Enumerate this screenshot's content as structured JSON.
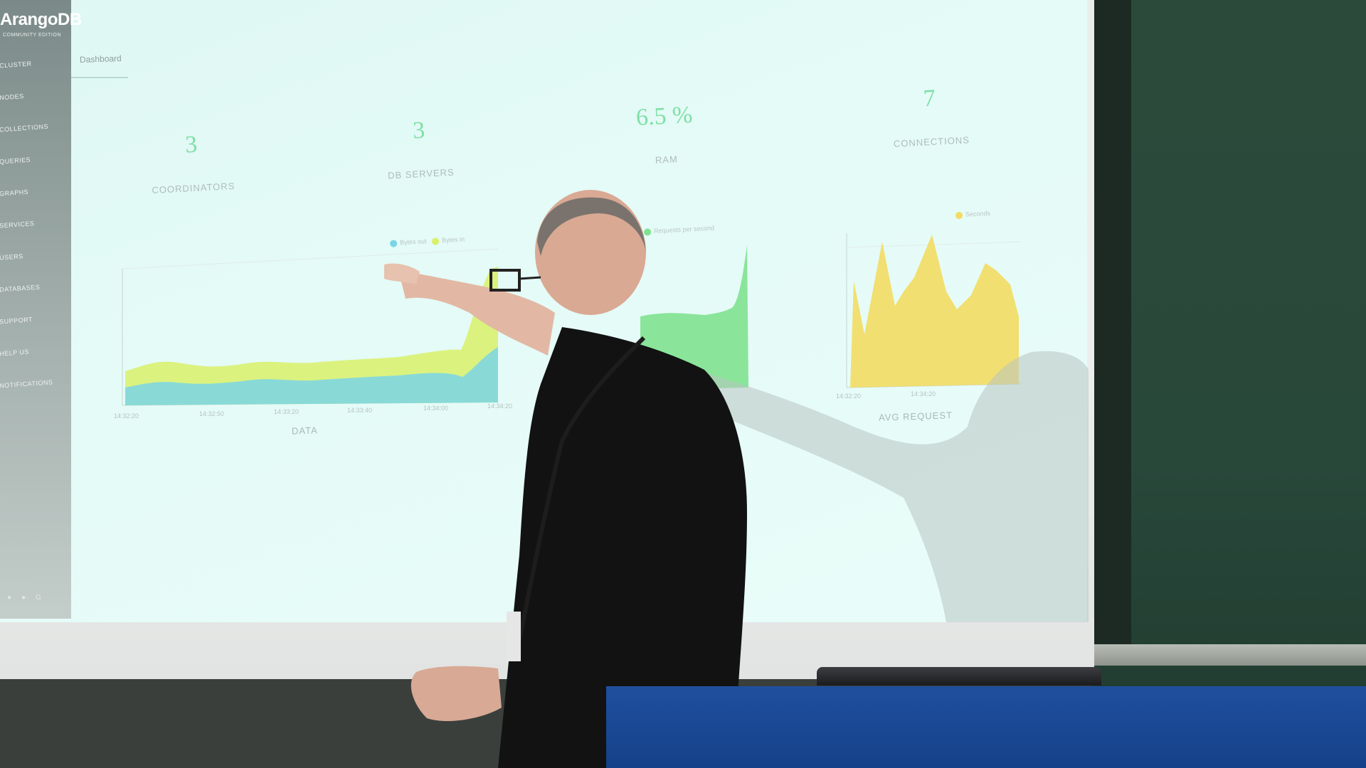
{
  "app": {
    "brand": "ArangoDB",
    "edition": "COMMUNITY EDITION",
    "tab": "Dashboard"
  },
  "sidebar": {
    "items": [
      "CLUSTER",
      "NODES",
      "COLLECTIONS",
      "QUERIES",
      "GRAPHS",
      "SERVICES",
      "USERS",
      "DATABASES",
      "SUPPORT",
      "HELP US",
      "NOTIFICATIONS"
    ]
  },
  "stats": [
    {
      "value": "3",
      "label": "COORDINATORS"
    },
    {
      "value": "3",
      "label": "DB SERVERS"
    },
    {
      "value": "6.5 %",
      "label": "RAM"
    },
    {
      "value": "7",
      "label": "CONNECTIONS"
    }
  ],
  "charts": {
    "data": {
      "caption": "DATA",
      "legend": [
        "Bytes out",
        "Bytes in"
      ],
      "x_ticks": [
        "14:32:20",
        "14:32:50",
        "14:33:20",
        "14:33:40",
        "14:34:00",
        "14:34:20"
      ]
    },
    "requests": {
      "legend": [
        "Requests per second"
      ]
    },
    "avg_request": {
      "caption": "AVG REQUEST",
      "legend": [
        "Seconds"
      ],
      "x_ticks": [
        "14:32:20",
        "14:34:20"
      ]
    }
  },
  "colors": {
    "accent": "#7fe0a6",
    "bytes_out": "#7ad6e6",
    "bytes_in": "#d9f06a",
    "requests": "#7fe28f",
    "seconds": "#f3dc62",
    "lectern": "#1f4f9e"
  }
}
